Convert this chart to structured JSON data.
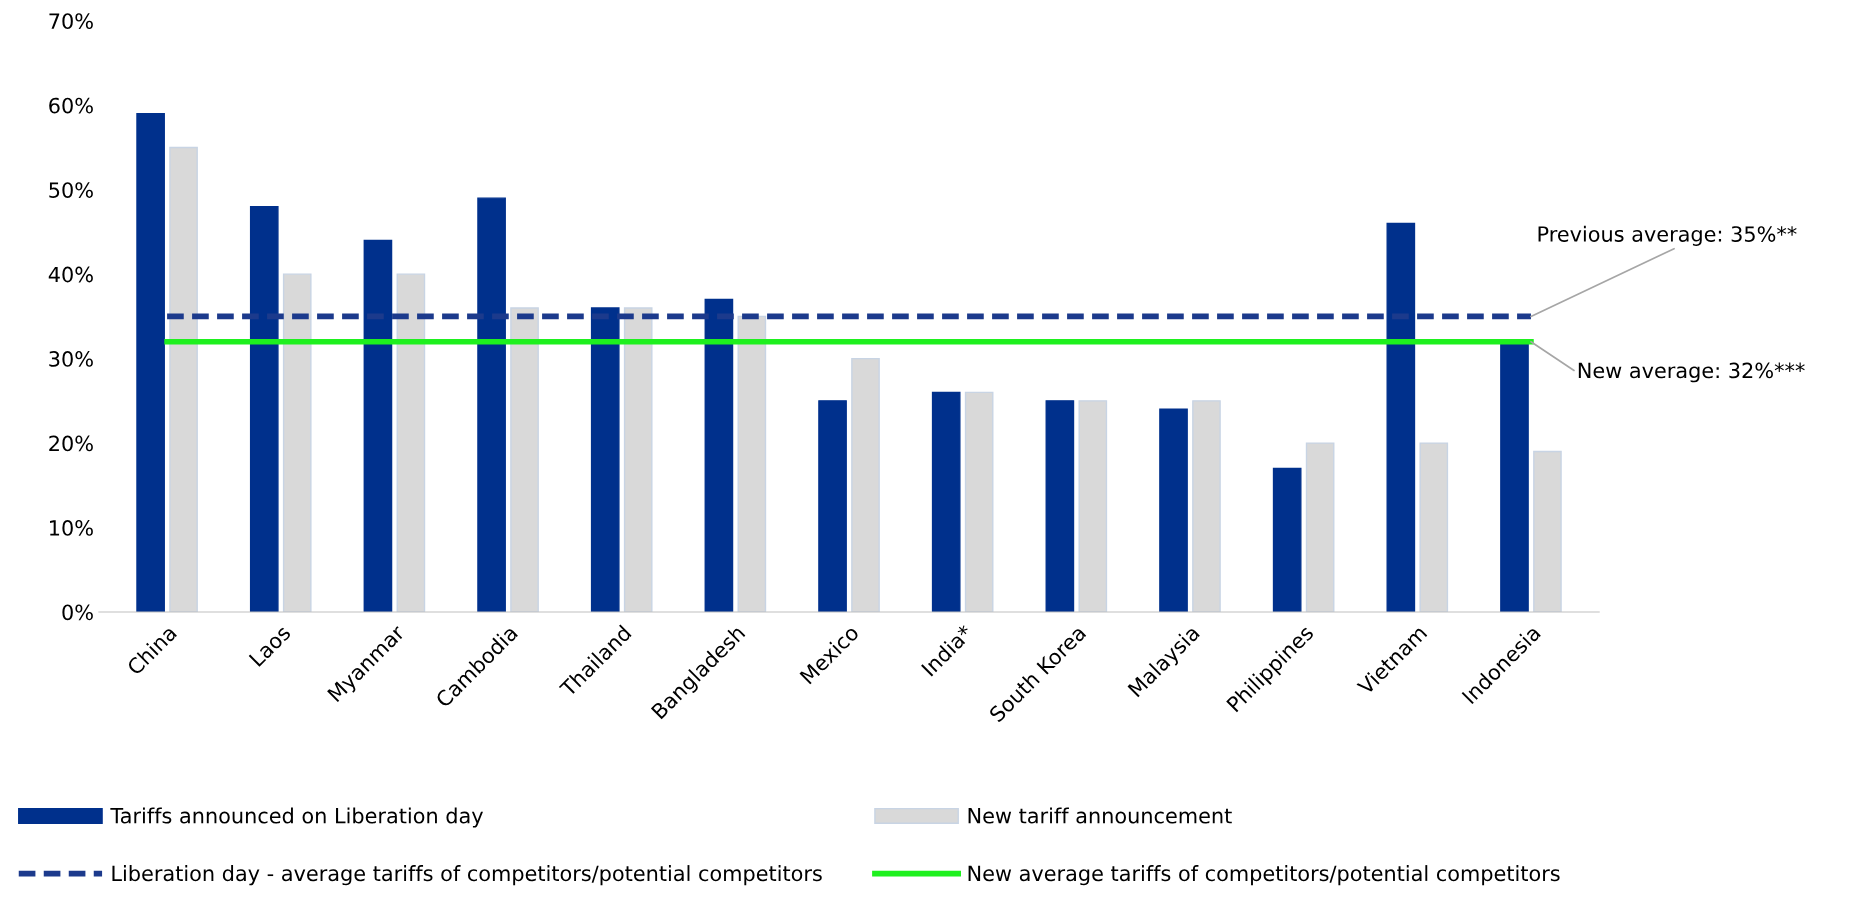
{
  "chart_data": {
    "type": "bar",
    "categories": [
      "China",
      "Laos",
      "Myanmar",
      "Cambodia",
      "Thailand",
      "Bangladesh",
      "Mexico",
      "India*",
      "South Korea",
      "Malaysia",
      "Philippines",
      "Vietnam",
      "Indonesia"
    ],
    "series": [
      {
        "name": "Tariffs announced on Liberation day",
        "color": "#00308c",
        "values": [
          59,
          48,
          44,
          49,
          36,
          37,
          25,
          26,
          25,
          24,
          17,
          46,
          32
        ]
      },
      {
        "name": "New tariff announcement",
        "color": "#d9d9d9",
        "values": [
          55,
          40,
          40,
          36,
          36,
          35,
          30,
          26,
          25,
          25,
          20,
          20,
          19
        ]
      },
      {
        "name": "Liberation day - average tariffs of competitors/potential competitors",
        "type": "line",
        "line_style": "dashed",
        "color": "#1c3a8c",
        "values": [
          35,
          35,
          35,
          35,
          35,
          35,
          35,
          35,
          35,
          35,
          35,
          35,
          35
        ]
      },
      {
        "name": "New average tariffs of competitors/potential competitors",
        "type": "line",
        "line_style": "solid",
        "color": "#1ef01e",
        "values": [
          32,
          32,
          32,
          32,
          32,
          32,
          32,
          32,
          32,
          32,
          32,
          32,
          32
        ]
      }
    ],
    "ylim": [
      0,
      70
    ],
    "yticks": [
      {
        "value": 0,
        "label": "0%"
      },
      {
        "value": 10,
        "label": "10%"
      },
      {
        "value": 20,
        "label": "20%"
      },
      {
        "value": 30,
        "label": "30%"
      },
      {
        "value": 40,
        "label": "40%"
      },
      {
        "value": 50,
        "label": "50%"
      },
      {
        "value": 60,
        "label": "60%"
      },
      {
        "value": 70,
        "label": "70%"
      }
    ],
    "annotations": [
      {
        "text": "Previous average: 35%**",
        "x": "Indonesia",
        "y": 35
      },
      {
        "text": "New average: 32%***",
        "x": "Indonesia",
        "y": 32
      }
    ],
    "grid": false,
    "legend": "bottom"
  }
}
